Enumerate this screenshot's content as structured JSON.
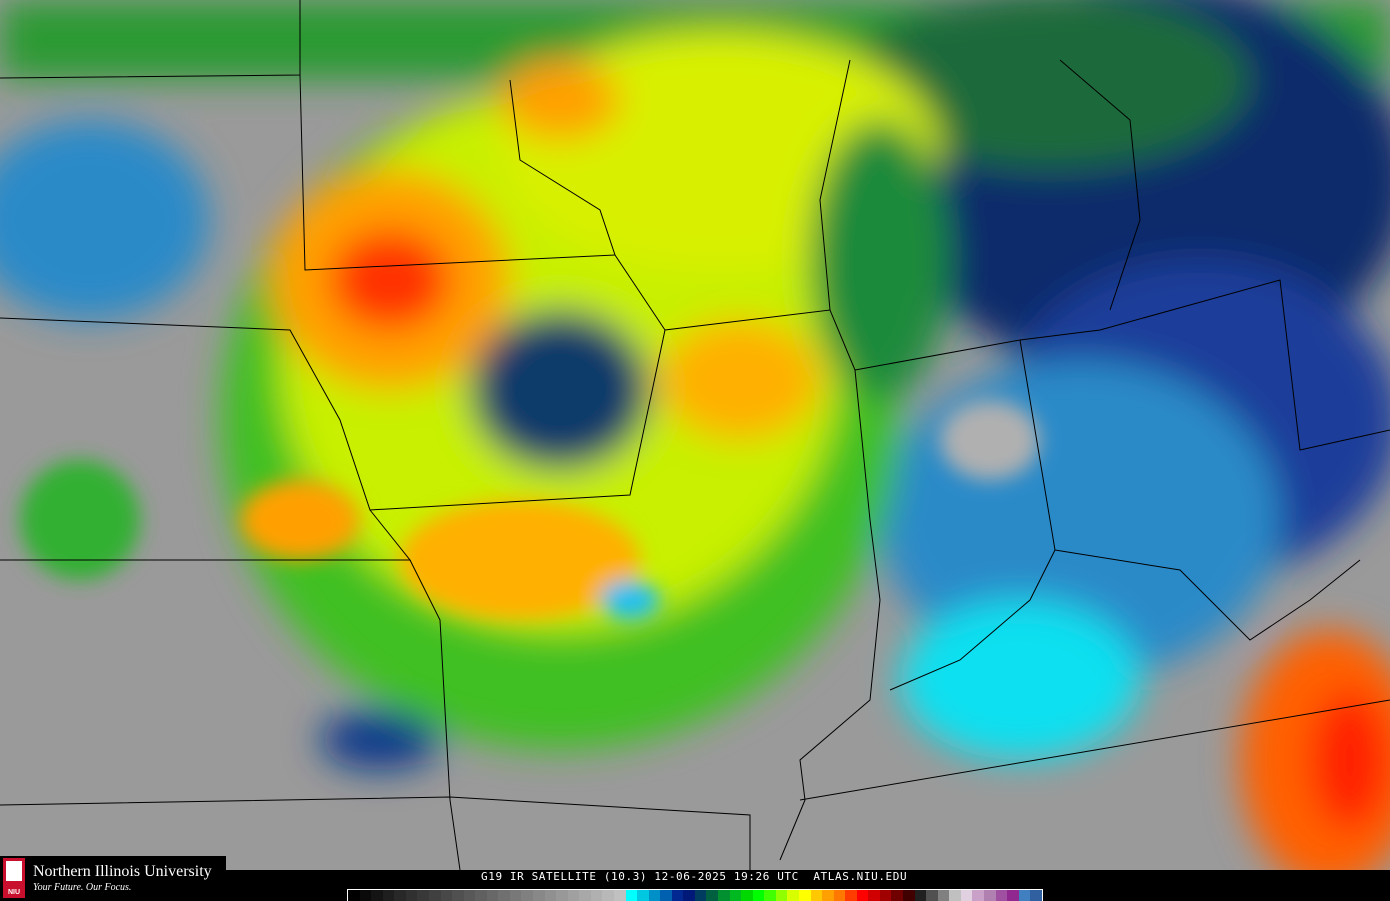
{
  "caption": {
    "satellite": "G19",
    "product": "IR SATELLITE",
    "channel": "(10.3)",
    "date": "12-06-2025",
    "time": "19:26 UTC",
    "site": "ATLAS.NIU.EDU"
  },
  "logo": {
    "name": "Northern Illinois University",
    "tagline": "Your Future. Our Focus.",
    "mark": "NIU"
  },
  "colorbar": [
    "#000000",
    "#0a0a0a",
    "#141414",
    "#1e1e1e",
    "#282828",
    "#303030",
    "#383838",
    "#404040",
    "#484848",
    "#505050",
    "#585858",
    "#606060",
    "#686868",
    "#707070",
    "#787878",
    "#808080",
    "#888888",
    "#909090",
    "#989898",
    "#a0a0a0",
    "#a8a8a8",
    "#b0b0b0",
    "#b8b8b8",
    "#c0c0c0",
    "#00ffff",
    "#00c8e0",
    "#0090c8",
    "#0060b0",
    "#002890",
    "#001878",
    "#003c60",
    "#006040",
    "#009030",
    "#00b820",
    "#00d800",
    "#00ff00",
    "#40ff00",
    "#90ff00",
    "#d8ff00",
    "#ffff00",
    "#ffc800",
    "#ffa000",
    "#ff7800",
    "#ff3c00",
    "#ff0000",
    "#d00000",
    "#a00000",
    "#700000",
    "#400000",
    "#202020",
    "#505050",
    "#808080",
    "#c0c0c0",
    "#e0d0e0",
    "#c8a0c8",
    "#b080b0",
    "#a050a0",
    "#902890",
    "#4080c0",
    "#3060a0"
  ]
}
